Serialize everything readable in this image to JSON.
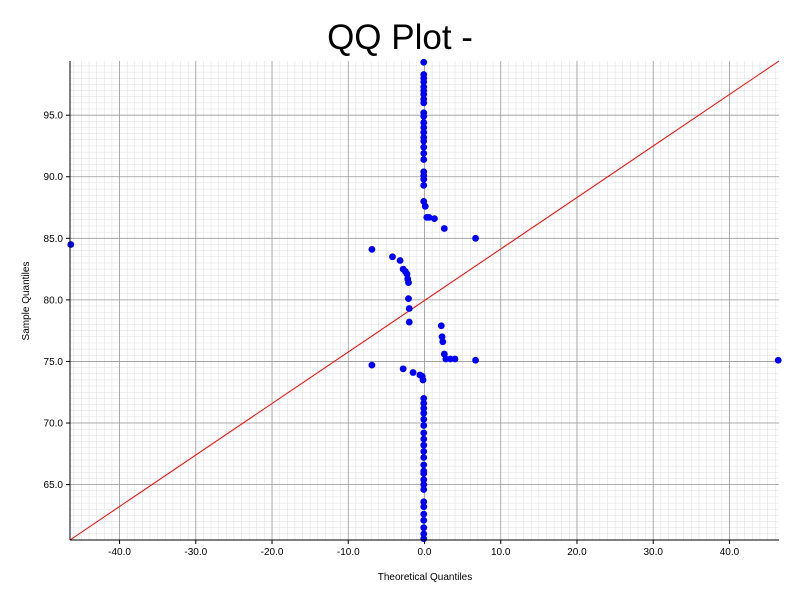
{
  "chart_data": {
    "type": "scatter",
    "title": "QQ Plot -",
    "xlabel": "Theoretical Quantiles",
    "ylabel": "Sample Quantiles",
    "xlim": [
      -46.5,
      46.5
    ],
    "ylim": [
      60.5,
      99.4
    ],
    "xticks": [
      -40,
      -30,
      -20,
      -10,
      0,
      10,
      20,
      30,
      40
    ],
    "xtick_labels": [
      "-40.0",
      "-30.0",
      "-20.0",
      "-10.0",
      "0.0",
      "10.0",
      "20.0",
      "30.0",
      "40.0"
    ],
    "yticks": [
      65,
      70,
      75,
      80,
      85,
      90,
      95
    ],
    "ytick_labels": [
      "65.0",
      "70.0",
      "75.0",
      "80.0",
      "85.0",
      "90.0",
      "95.0"
    ],
    "grid": true,
    "colors": {
      "points": "#0000ff",
      "reference_line": "#ff0000",
      "grid_major": "#999999",
      "grid_minor": "#dddddd"
    },
    "reference_line": {
      "x": [
        -46.5,
        46.5
      ],
      "y": [
        60.5,
        99.4
      ]
    },
    "series": [
      {
        "x": [
          -0.1,
          -0.1,
          -0.1,
          -0.1,
          -0.1,
          -0.1,
          -0.1,
          -0.1,
          -0.1,
          -0.1,
          -0.1,
          -0.1,
          -0.1,
          -0.1,
          -0.1,
          -0.1,
          -0.1,
          -0.1,
          -0.1,
          -0.1,
          -0.1,
          -0.1,
          -0.1,
          -0.1,
          0.1,
          0.3,
          0.6,
          1.3,
          2.6,
          6.7,
          -6.9,
          -4.2,
          -3.2,
          -2.8,
          -2.5,
          -2.3,
          -2.2,
          -2.1,
          -2.1,
          -2.0,
          -2.0,
          2.2,
          2.3,
          2.4,
          2.6,
          2.8,
          3.4,
          4.0,
          6.7,
          46.4,
          -46.4,
          -6.9,
          -2.8,
          -1.5,
          -0.6,
          -0.3,
          -0.2,
          -0.1,
          -0.1,
          -0.1,
          -0.1,
          -0.1,
          -0.1,
          -0.1,
          -0.1,
          -0.1,
          -0.1,
          -0.1,
          -0.1,
          -0.1,
          -0.1,
          -0.1,
          -0.1,
          -0.1,
          -0.1,
          -0.1,
          -0.1,
          -0.1,
          -0.1,
          -0.1,
          -0.1
        ],
        "y": [
          99.3,
          98.3,
          98.0,
          97.7,
          97.3,
          97.0,
          96.7,
          96.3,
          96.0,
          95.2,
          94.9,
          94.4,
          94.0,
          93.6,
          93.2,
          92.9,
          92.4,
          91.9,
          91.4,
          90.4,
          90.1,
          89.8,
          89.3,
          88.0,
          87.6,
          86.7,
          86.7,
          86.6,
          85.8,
          85.0,
          84.1,
          83.5,
          83.2,
          82.5,
          82.3,
          82.1,
          81.7,
          81.4,
          80.1,
          79.3,
          78.2,
          77.9,
          77.0,
          76.6,
          75.6,
          75.2,
          75.2,
          75.2,
          75.1,
          75.1,
          84.5,
          74.7,
          74.4,
          74.1,
          73.9,
          73.8,
          73.5,
          72.0,
          71.6,
          71.2,
          70.8,
          70.3,
          69.8,
          69.2,
          68.7,
          68.2,
          67.7,
          67.2,
          66.6,
          66.1,
          65.9,
          65.4,
          65.0,
          64.6,
          63.6,
          63.2,
          62.6,
          62.1,
          61.5,
          61.0,
          60.6
        ]
      }
    ]
  }
}
